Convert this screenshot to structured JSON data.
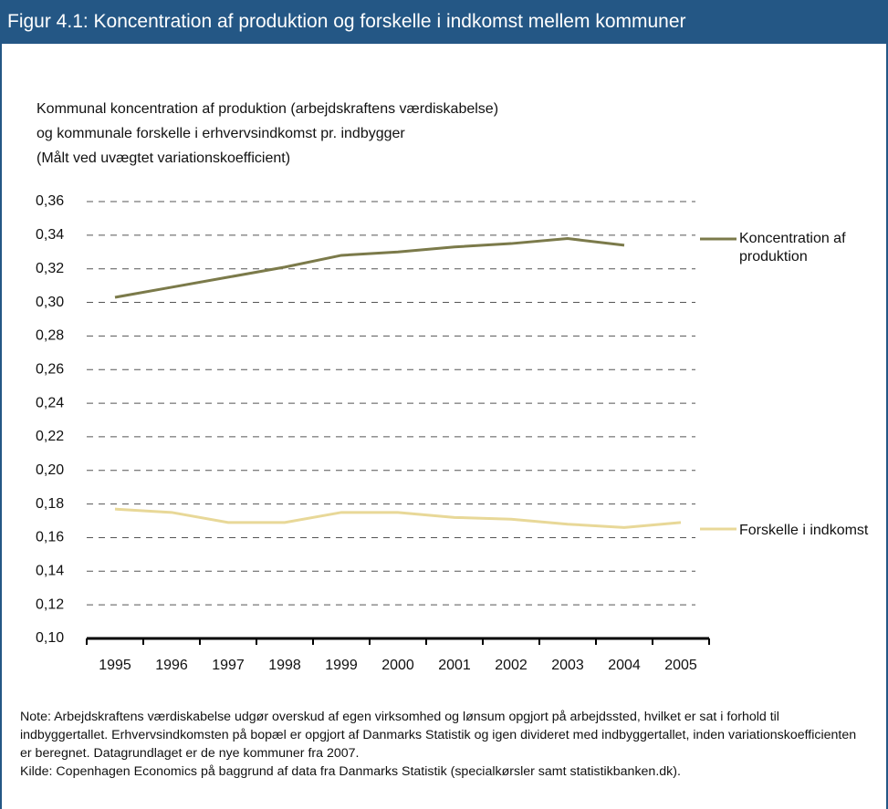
{
  "chart_data": {
    "type": "line",
    "title": "Figur 4.1: Koncentration af produktion og forskelle i indkomst mellem kommuner",
    "subtitle": [
      "Kommunal koncentration af produktion (arbejdskraftens værdiskabelse)",
      "og kommunale forskelle i erhvervsindkomst pr. indbygger",
      "(Målt ved uvægtet variationskoefficient)"
    ],
    "categories": [
      "1995",
      "1996",
      "1997",
      "1998",
      "1999",
      "2000",
      "2001",
      "2002",
      "2003",
      "2004",
      "2005"
    ],
    "series": [
      {
        "name": "Koncentration af produktion",
        "color": "#7b7a4a",
        "values": [
          0.303,
          0.309,
          0.315,
          0.321,
          0.328,
          0.33,
          0.333,
          0.335,
          0.338,
          0.334,
          null
        ]
      },
      {
        "name": "Forskelle i indkomst",
        "color": "#e8d898",
        "values": [
          0.177,
          0.175,
          0.169,
          0.169,
          0.175,
          0.175,
          0.172,
          0.171,
          0.168,
          0.166,
          0.169
        ]
      }
    ],
    "ylim": [
      0.1,
      0.36
    ],
    "yticks": [
      {
        "value": 0.1,
        "label": "0,10"
      },
      {
        "value": 0.12,
        "label": "0,12"
      },
      {
        "value": 0.14,
        "label": "0,14"
      },
      {
        "value": 0.16,
        "label": "0,16"
      },
      {
        "value": 0.18,
        "label": "0,18"
      },
      {
        "value": 0.2,
        "label": "0,20"
      },
      {
        "value": 0.22,
        "label": "0,22"
      },
      {
        "value": 0.24,
        "label": "0,24"
      },
      {
        "value": 0.26,
        "label": "0,26"
      },
      {
        "value": 0.28,
        "label": "0,28"
      },
      {
        "value": 0.3,
        "label": "0,30"
      },
      {
        "value": 0.32,
        "label": "0,32"
      },
      {
        "value": 0.34,
        "label": "0,34"
      },
      {
        "value": 0.36,
        "label": "0,36"
      }
    ],
    "grid": true,
    "note": "Note: Arbejdskraftens værdiskabelse udgør overskud af egen virksomhed og lønsum opgjort på arbejdssted, hvilket er sat i forhold til indbyggertallet. Erhvervsindkomsten på bopæl er opgjort af Danmarks Statistik og igen divideret med indbyggertallet, inden variationskoefficienten er beregnet. Datagrundlaget er de nye kommuner fra 2007.",
    "source": "Kilde: Copenhagen Economics på baggrund af data fra Danmarks Statistik (specialkørsler samt statistikbanken.dk)."
  }
}
